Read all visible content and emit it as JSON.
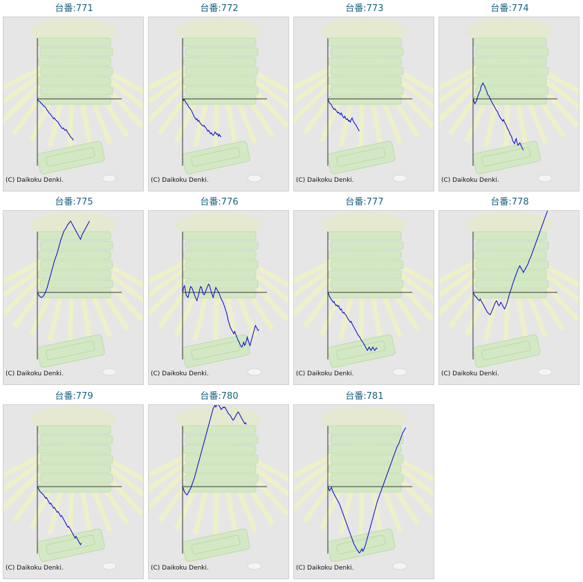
{
  "copyright": "(C) Daikoku Denki.",
  "colors": {
    "title": "#17607f",
    "line": "#0000cc",
    "axis": "#333333",
    "panel": "#e6e6e6"
  },
  "chart_data": [
    {
      "type": "line",
      "title": "台番:771",
      "values": [
        0,
        -2,
        -3,
        -3.5,
        -5,
        -6,
        -7,
        -9,
        -9,
        -10,
        -12,
        -14,
        -15,
        -17,
        -18,
        -19,
        -21,
        -22,
        -24,
        -23,
        -25,
        -26,
        -27,
        -28,
        -30,
        -32,
        -33,
        -35,
        -36,
        -35,
        -37,
        -38,
        -37,
        -39,
        -41,
        -42,
        -44,
        -46,
        -47,
        -48,
        -50
      ]
    },
    {
      "type": "line",
      "title": "台番:772",
      "values": [
        0,
        -2,
        -1,
        -3,
        -5,
        -6,
        -8,
        -10,
        -11,
        -13,
        -14,
        -17,
        -19,
        -22,
        -23,
        -25,
        -24,
        -27,
        -26,
        -28,
        -30,
        -31,
        -32,
        -33,
        -32,
        -34,
        -35,
        -37,
        -39,
        -38,
        -40,
        -42,
        -41,
        -43,
        -44,
        -43,
        -40,
        -41,
        -43,
        -42,
        -45,
        -43,
        -45,
        -46
      ]
    },
    {
      "type": "line",
      "title": "台番:773",
      "values": [
        0,
        -3,
        -5,
        -6,
        -7,
        -10,
        -11,
        -13,
        -12,
        -14,
        -15,
        -17,
        -16,
        -18,
        -19,
        -17,
        -20,
        -22,
        -23,
        -21,
        -24,
        -25,
        -24,
        -27,
        -26,
        -28,
        -25,
        -23,
        -26,
        -28,
        -30,
        -31,
        -33,
        -35,
        -37,
        -39
      ]
    },
    {
      "type": "line",
      "title": "台番:774",
      "values": [
        0,
        -3,
        -6,
        -4,
        -2,
        2,
        5,
        8,
        10,
        15,
        17,
        19,
        17,
        15,
        12,
        10,
        6,
        4,
        3,
        0,
        -2,
        -4,
        -6,
        -8,
        -10,
        -12,
        -14,
        -15,
        -18,
        -20,
        -22,
        -24,
        -25,
        -27,
        -25,
        -28,
        -30,
        -32,
        -35,
        -37,
        -39,
        -42,
        -44,
        -46,
        -50,
        -52,
        -54,
        -51,
        -48,
        -53,
        -56,
        -55,
        -53,
        -55,
        -58,
        -60,
        -62
      ]
    },
    {
      "type": "line",
      "title": "台番:775",
      "values": [
        0,
        -2,
        -4,
        -5,
        -6,
        -6,
        -5,
        -4,
        -2,
        0,
        3,
        6,
        10,
        14,
        18,
        22,
        26,
        30,
        34,
        38,
        41,
        44,
        47,
        51,
        55,
        59,
        63,
        66,
        69,
        72,
        75,
        76,
        78,
        80,
        82,
        83,
        85,
        86,
        84,
        82,
        80,
        78,
        76,
        74,
        72,
        70,
        68,
        66,
        64,
        67,
        70,
        72,
        74,
        76,
        78,
        80,
        82,
        84,
        86
      ]
    },
    {
      "type": "line",
      "title": "台番:776",
      "values": [
        0,
        5,
        8,
        3,
        -3,
        -5,
        -6,
        -2,
        3,
        7,
        6,
        4,
        1,
        -2,
        -5,
        -8,
        -10,
        -6,
        -2,
        3,
        7,
        6,
        2,
        -2,
        -3,
        -1,
        2,
        5,
        8,
        10,
        8,
        4,
        0,
        -3,
        -6,
        -2,
        2,
        6,
        4,
        2,
        0,
        -2,
        -5,
        -8,
        -10,
        -12,
        -15,
        -18,
        -22,
        -25,
        -30,
        -35,
        -38,
        -42,
        -44,
        -46,
        -48,
        -50,
        -47,
        -50,
        -53,
        -56,
        -58,
        -60,
        -63,
        -65,
        -66,
        -63,
        -60,
        -64,
        -62,
        -58,
        -54,
        -58,
        -61,
        -64,
        -60,
        -56,
        -52,
        -48,
        -44,
        -40,
        -42,
        -44,
        -46,
        -45
      ]
    },
    {
      "type": "line",
      "title": "台番:777",
      "values": [
        0,
        -2,
        -5,
        -7,
        -9,
        -10,
        -12,
        -11,
        -14,
        -16,
        -15,
        -17,
        -16,
        -19,
        -21,
        -20,
        -23,
        -25,
        -24,
        -26,
        -27,
        -29,
        -31,
        -33,
        -34,
        -36,
        -35,
        -38,
        -40,
        -42,
        -44,
        -46,
        -48,
        -50,
        -52,
        -53,
        -55,
        -57,
        -59,
        -60,
        -62,
        -64,
        -66,
        -68,
        -70,
        -68,
        -66,
        -68,
        -70,
        -68,
        -66,
        -68,
        -70,
        -69,
        -67,
        -68
      ]
    },
    {
      "type": "line",
      "title": "台番:778",
      "values": [
        0,
        -2,
        -4,
        -5,
        -6,
        -8,
        -9,
        -10,
        -8,
        -10,
        -12,
        -14,
        -16,
        -18,
        -20,
        -22,
        -24,
        -25,
        -26,
        -27,
        -25,
        -22,
        -20,
        -17,
        -14,
        -12,
        -10,
        -12,
        -15,
        -16,
        -14,
        -12,
        -14,
        -16,
        -18,
        -20,
        -18,
        -15,
        -12,
        -8,
        -4,
        0,
        3,
        6,
        10,
        13,
        16,
        19,
        22,
        25,
        28,
        30,
        32,
        30,
        28,
        26,
        24,
        26,
        28,
        30,
        32,
        34,
        37,
        40,
        42,
        45,
        48,
        51,
        54,
        57,
        60,
        63,
        66,
        69,
        72,
        75,
        78,
        81,
        84,
        87,
        90,
        93,
        96,
        99,
        102,
        105
      ]
    },
    {
      "type": "line",
      "title": "台番:779",
      "values": [
        0,
        -2,
        -4,
        -6,
        -7,
        -8,
        -9,
        -10,
        -12,
        -14,
        -13,
        -15,
        -17,
        -19,
        -21,
        -20,
        -22,
        -24,
        -26,
        -25,
        -27,
        -29,
        -31,
        -30,
        -32,
        -34,
        -36,
        -35,
        -37,
        -39,
        -41,
        -43,
        -45,
        -47,
        -49,
        -48,
        -50,
        -52,
        -54,
        -56,
        -58,
        -60,
        -62,
        -60,
        -62,
        -64,
        -66,
        -68,
        -70,
        -68
      ]
    },
    {
      "type": "line",
      "title": "台番:780",
      "values": [
        0,
        -3,
        -6,
        -8,
        -9,
        -10,
        -8,
        -6,
        -4,
        -2,
        1,
        4,
        7,
        10,
        14,
        18,
        22,
        26,
        30,
        34,
        38,
        42,
        46,
        50,
        54,
        58,
        62,
        66,
        70,
        74,
        78,
        82,
        86,
        90,
        94,
        96,
        98,
        96,
        98,
        100,
        98,
        97,
        95,
        93,
        94,
        96,
        95,
        96,
        94,
        92,
        90,
        88,
        87,
        86,
        84,
        82,
        80,
        81,
        83,
        85,
        87,
        89,
        90,
        88,
        86,
        84,
        82,
        80,
        78,
        76,
        77,
        75
      ]
    },
    {
      "type": "line",
      "title": "台番:781",
      "values": [
        0,
        -3,
        -5,
        -3,
        -1,
        -4,
        -7,
        -9,
        -11,
        -13,
        -15,
        -17,
        -19,
        -21,
        -24,
        -27,
        -30,
        -33,
        -36,
        -39,
        -42,
        -45,
        -48,
        -51,
        -54,
        -57,
        -60,
        -63,
        -66,
        -69,
        -71,
        -73,
        -75,
        -77,
        -78,
        -80,
        -79,
        -77,
        -75,
        -78,
        -76,
        -73,
        -70,
        -66,
        -62,
        -58,
        -54,
        -50,
        -46,
        -42,
        -38,
        -34,
        -30,
        -26,
        -22,
        -18,
        -15,
        -12,
        -9,
        -6,
        -3,
        0,
        3,
        6,
        9,
        12,
        15,
        18,
        21,
        24,
        27,
        30,
        33,
        36,
        39,
        42,
        45,
        48,
        50,
        52,
        55,
        58,
        61,
        64,
        66,
        68,
        70,
        71
      ]
    }
  ]
}
